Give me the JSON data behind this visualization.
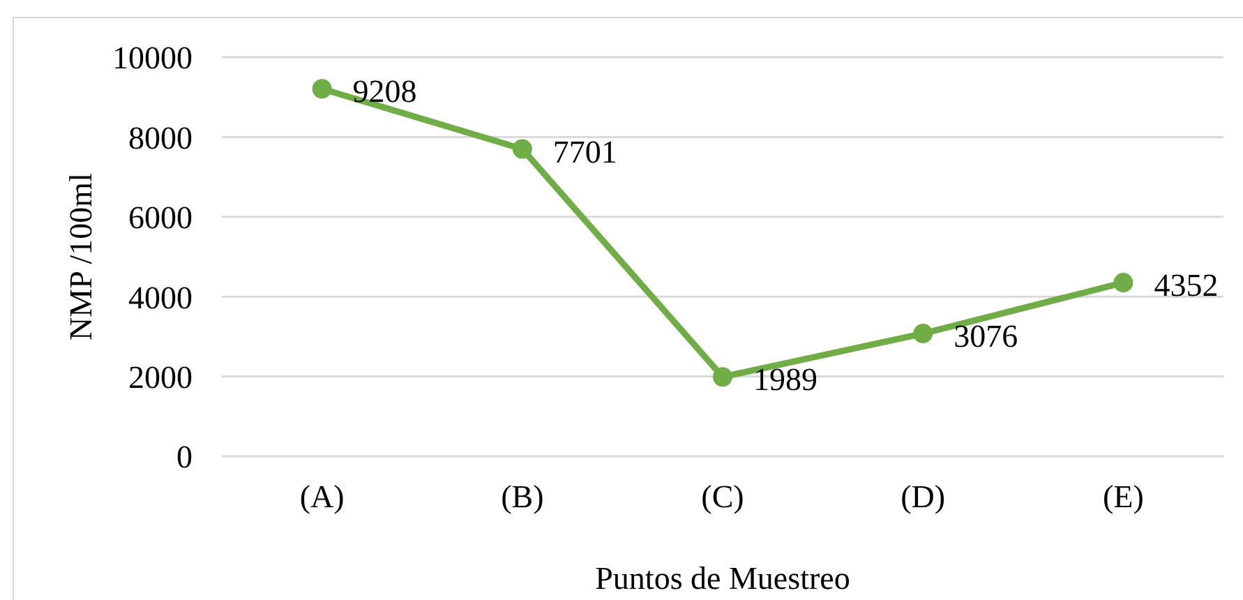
{
  "chart_data": {
    "type": "line",
    "xlabel": "Puntos de Muestreo",
    "ylabel": "NMP /100ml",
    "categories": [
      "(A)",
      "(B)",
      "(C)",
      "(D)",
      "(E)"
    ],
    "series": [
      {
        "color": "#70ad47",
        "values": [
          9208,
          7701,
          1989,
          3076,
          4352
        ]
      }
    ],
    "ylim": [
      0,
      10000
    ],
    "yticks": [
      0,
      2000,
      4000,
      6000,
      8000,
      10000
    ],
    "grid": "y",
    "marker": "circle",
    "line_style": "solid",
    "data_labels": true
  }
}
